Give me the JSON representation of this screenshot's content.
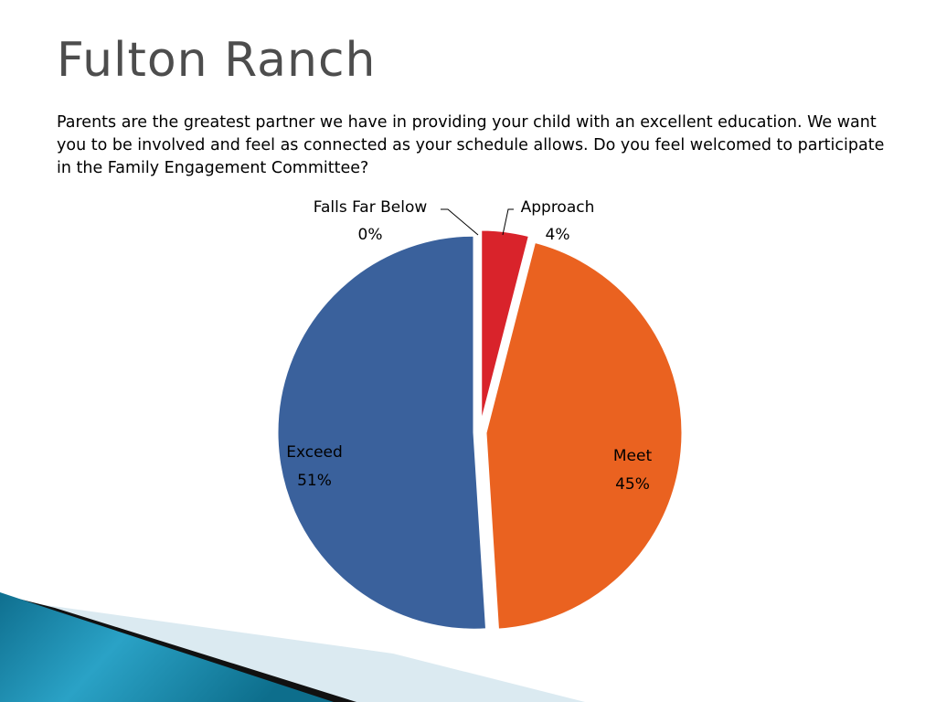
{
  "slide": {
    "title": "Fulton Ranch",
    "body": "Parents are the greatest partner we have in providing your child with an excellent education. We want you to be involved and feel as connected as your schedule allows. Do you feel welcomed to participate in the Family Engagement Committee?"
  },
  "chart_data": {
    "type": "pie",
    "title": "",
    "slices": [
      {
        "label": "Falls Far Below",
        "value": 0,
        "display": "0%",
        "color": "#c0c0c0"
      },
      {
        "label": "Approach",
        "value": 4,
        "display": "4%",
        "color": "#d9232b"
      },
      {
        "label": "Meet",
        "value": 45,
        "display": "45%",
        "color": "#ea6220"
      },
      {
        "label": "Exceed",
        "value": 51,
        "display": "51%",
        "color": "#3a619c"
      }
    ],
    "legend": "none"
  },
  "theme": {
    "title_color": "#4d4d4d",
    "deco_teal": "#1f8fb0",
    "deco_dark": "#111111",
    "deco_light": "#d8eaf2"
  }
}
